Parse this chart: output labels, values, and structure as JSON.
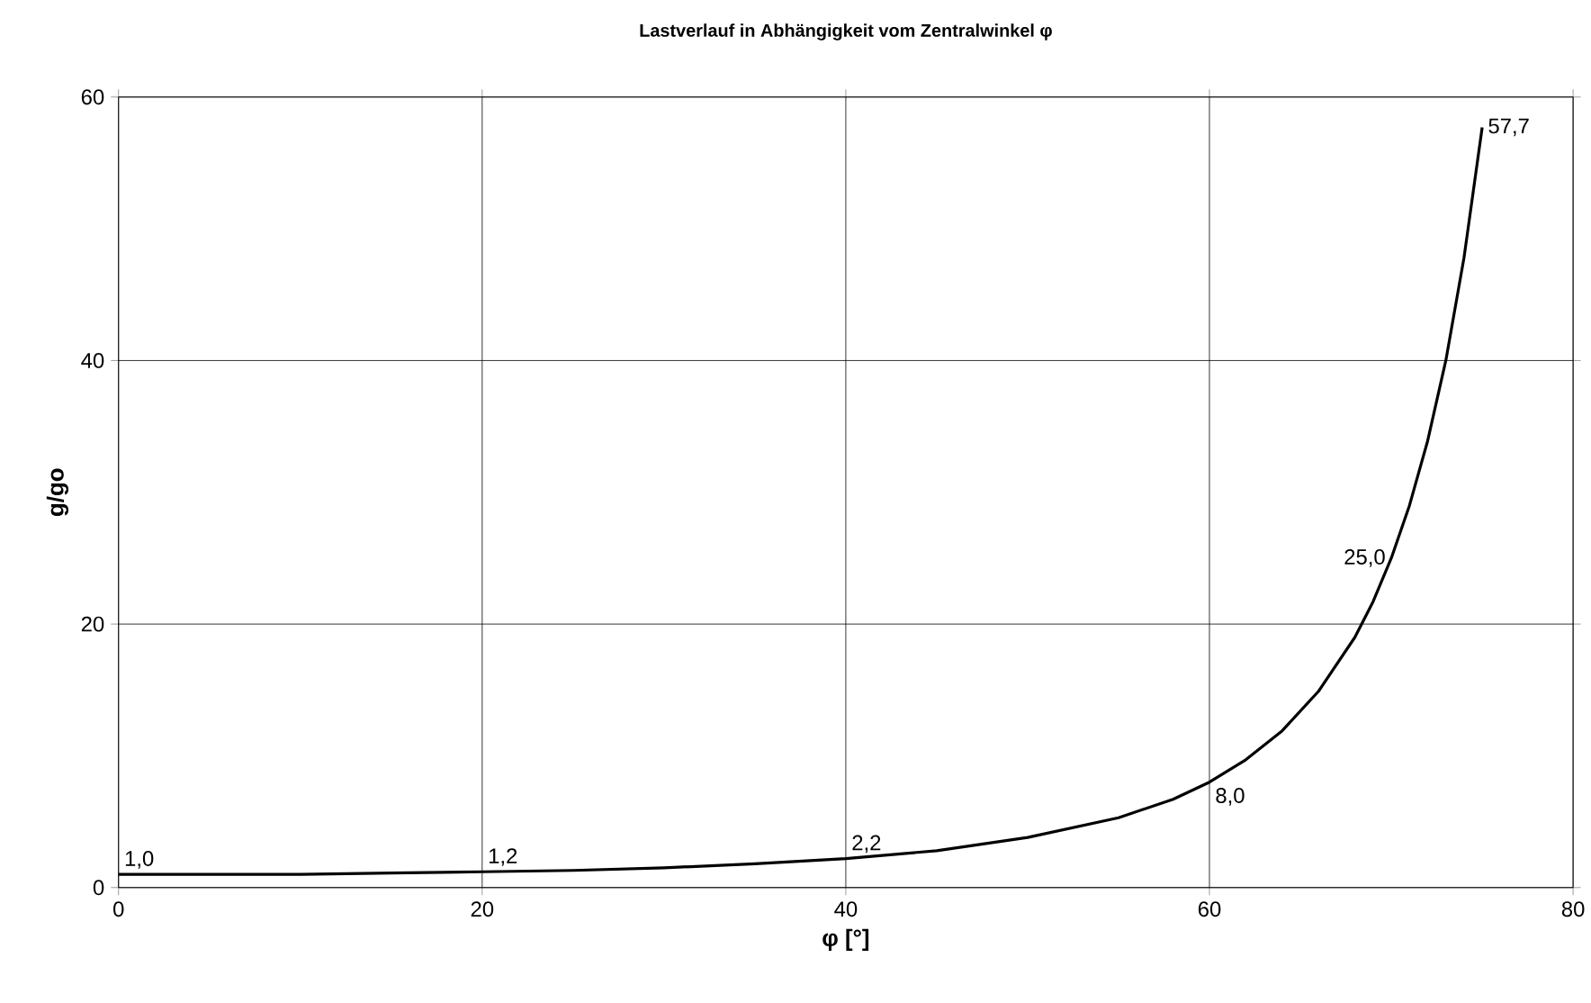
{
  "chart_data": {
    "type": "line",
    "title": "Lastverlauf in Abhängigkeit vom Zentralwinkel φ",
    "xlabel": "φ [°]",
    "ylabel": "g/go",
    "x": [
      0,
      5,
      10,
      15,
      20,
      25,
      30,
      35,
      40,
      45,
      50,
      55,
      58,
      60,
      62,
      64,
      66,
      68,
      69,
      70,
      71,
      72,
      73,
      74,
      75
    ],
    "values": [
      1.0,
      1.0,
      1.0,
      1.1,
      1.2,
      1.3,
      1.5,
      1.8,
      2.2,
      2.8,
      3.8,
      5.3,
      6.7,
      8.0,
      9.7,
      11.9,
      14.9,
      19.0,
      21.7,
      25.0,
      29.0,
      33.9,
      40.0,
      47.8,
      57.7
    ],
    "value_labels": [
      "1,0",
      null,
      null,
      null,
      "1,2",
      null,
      null,
      null,
      "2,2",
      null,
      null,
      null,
      null,
      "8,0",
      null,
      null,
      null,
      null,
      null,
      "25,0",
      null,
      null,
      null,
      null,
      "57,7"
    ],
    "color": "#000000",
    "xlim": [
      0,
      80
    ],
    "ylim": [
      0,
      60
    ],
    "xticks": [
      0,
      20,
      40,
      60,
      80
    ],
    "yticks": [
      0,
      20,
      40,
      60
    ],
    "grid": true,
    "marker": "none",
    "line_style": "solid"
  }
}
